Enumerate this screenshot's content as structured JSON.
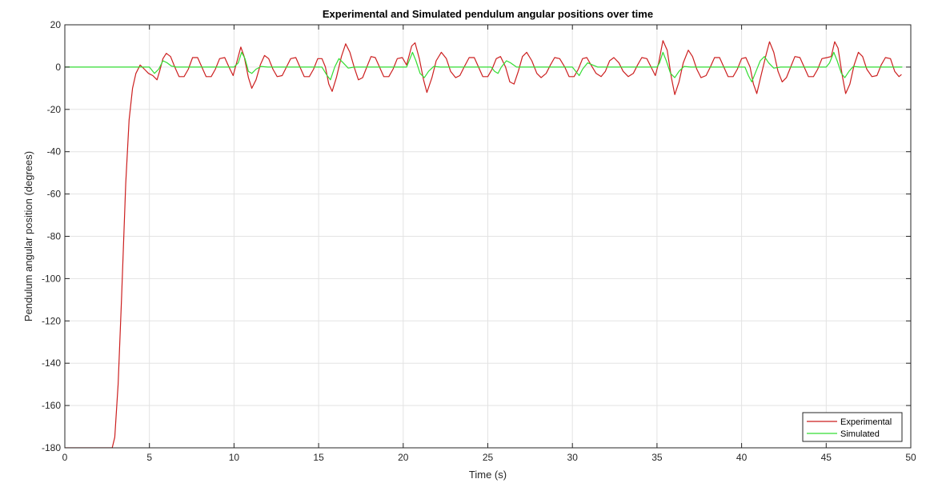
{
  "chart_data": {
    "type": "line",
    "title": "Experimental and Simulated pendulum angular positions over time",
    "xlabel": "Time (s)",
    "ylabel": "Pendulum angular position (degrees)",
    "xlim": [
      0,
      50
    ],
    "ylim": [
      -180,
      20
    ],
    "xticks": [
      0,
      5,
      10,
      15,
      20,
      25,
      30,
      35,
      40,
      45,
      50
    ],
    "yticks": [
      20,
      0,
      -20,
      -40,
      -60,
      -80,
      -100,
      -120,
      -140,
      -160,
      -180
    ],
    "grid": true,
    "legend_position": "bottom-right",
    "series": [
      {
        "name": "Experimental",
        "color": "#cc1f1f",
        "points": [
          [
            0,
            -180
          ],
          [
            2.8,
            -180
          ],
          [
            2.95,
            -175
          ],
          [
            3.15,
            -150
          ],
          [
            3.35,
            -110
          ],
          [
            3.6,
            -55
          ],
          [
            3.8,
            -25
          ],
          [
            4.0,
            -10
          ],
          [
            4.2,
            -3
          ],
          [
            4.45,
            1
          ],
          [
            4.7,
            -1
          ],
          [
            4.95,
            -3
          ],
          [
            5.2,
            -4
          ],
          [
            5.45,
            -6
          ],
          [
            5.6,
            -2
          ],
          [
            5.8,
            4
          ],
          [
            6.0,
            6.5
          ],
          [
            6.25,
            5
          ],
          [
            6.5,
            0
          ],
          [
            6.75,
            -4.5
          ],
          [
            7.05,
            -4.5
          ],
          [
            7.3,
            -1
          ],
          [
            7.55,
            4.5
          ],
          [
            7.85,
            4.5
          ],
          [
            8.1,
            0
          ],
          [
            8.35,
            -4.5
          ],
          [
            8.65,
            -4.5
          ],
          [
            8.9,
            -1
          ],
          [
            9.15,
            4
          ],
          [
            9.45,
            4.5
          ],
          [
            9.7,
            0
          ],
          [
            9.95,
            -4
          ],
          [
            10.15,
            2
          ],
          [
            10.4,
            9.5
          ],
          [
            10.6,
            5
          ],
          [
            10.85,
            -5
          ],
          [
            11.05,
            -10
          ],
          [
            11.3,
            -6
          ],
          [
            11.55,
            1
          ],
          [
            11.8,
            5.5
          ],
          [
            12.05,
            4
          ],
          [
            12.3,
            -1
          ],
          [
            12.55,
            -4.5
          ],
          [
            12.85,
            -4
          ],
          [
            13.1,
            0
          ],
          [
            13.35,
            4
          ],
          [
            13.65,
            4.5
          ],
          [
            13.9,
            0
          ],
          [
            14.15,
            -4.5
          ],
          [
            14.45,
            -4.5
          ],
          [
            14.7,
            -1
          ],
          [
            14.95,
            4
          ],
          [
            15.2,
            4
          ],
          [
            15.4,
            0
          ],
          [
            15.6,
            -8
          ],
          [
            15.8,
            -11.5
          ],
          [
            16.05,
            -5
          ],
          [
            16.35,
            5
          ],
          [
            16.6,
            11
          ],
          [
            16.85,
            7
          ],
          [
            17.1,
            0
          ],
          [
            17.35,
            -6
          ],
          [
            17.6,
            -5
          ],
          [
            17.85,
            0
          ],
          [
            18.1,
            5
          ],
          [
            18.35,
            4.5
          ],
          [
            18.6,
            0
          ],
          [
            18.85,
            -4.5
          ],
          [
            19.15,
            -4.5
          ],
          [
            19.4,
            -1
          ],
          [
            19.65,
            4
          ],
          [
            19.95,
            4.5
          ],
          [
            20.2,
            1
          ],
          [
            20.5,
            10
          ],
          [
            20.7,
            11.5
          ],
          [
            20.95,
            4
          ],
          [
            21.2,
            -6
          ],
          [
            21.4,
            -12
          ],
          [
            21.7,
            -5
          ],
          [
            21.95,
            3
          ],
          [
            22.25,
            7
          ],
          [
            22.55,
            4
          ],
          [
            22.8,
            -2
          ],
          [
            23.1,
            -5
          ],
          [
            23.35,
            -4
          ],
          [
            23.6,
            0
          ],
          [
            23.9,
            4.5
          ],
          [
            24.2,
            4.5
          ],
          [
            24.45,
            0
          ],
          [
            24.7,
            -4.5
          ],
          [
            25.0,
            -4.5
          ],
          [
            25.25,
            -1
          ],
          [
            25.5,
            4
          ],
          [
            25.75,
            5
          ],
          [
            26.05,
            0
          ],
          [
            26.3,
            -7
          ],
          [
            26.55,
            -8
          ],
          [
            26.8,
            -2
          ],
          [
            27.05,
            5
          ],
          [
            27.3,
            7
          ],
          [
            27.6,
            3
          ],
          [
            27.9,
            -3
          ],
          [
            28.15,
            -5
          ],
          [
            28.45,
            -3
          ],
          [
            28.7,
            1
          ],
          [
            28.95,
            4.5
          ],
          [
            29.25,
            4
          ],
          [
            29.55,
            0
          ],
          [
            29.8,
            -4.5
          ],
          [
            30.1,
            -4.5
          ],
          [
            30.35,
            -1
          ],
          [
            30.6,
            4
          ],
          [
            30.85,
            4.5
          ],
          [
            31.1,
            1
          ],
          [
            31.4,
            -3
          ],
          [
            31.7,
            -4.5
          ],
          [
            31.95,
            -2
          ],
          [
            32.2,
            3
          ],
          [
            32.45,
            4.5
          ],
          [
            32.75,
            2
          ],
          [
            33.0,
            -2
          ],
          [
            33.3,
            -4.5
          ],
          [
            33.6,
            -3
          ],
          [
            33.85,
            1
          ],
          [
            34.1,
            4.5
          ],
          [
            34.4,
            4
          ],
          [
            34.65,
            0
          ],
          [
            34.9,
            -4
          ],
          [
            35.1,
            2
          ],
          [
            35.35,
            12.5
          ],
          [
            35.6,
            8
          ],
          [
            35.85,
            -5
          ],
          [
            36.05,
            -13
          ],
          [
            36.3,
            -7
          ],
          [
            36.55,
            2
          ],
          [
            36.85,
            8
          ],
          [
            37.1,
            5
          ],
          [
            37.35,
            -1
          ],
          [
            37.6,
            -5
          ],
          [
            37.9,
            -4
          ],
          [
            38.15,
            0
          ],
          [
            38.4,
            4.5
          ],
          [
            38.7,
            4.5
          ],
          [
            38.95,
            0
          ],
          [
            39.2,
            -4.5
          ],
          [
            39.5,
            -4.5
          ],
          [
            39.75,
            -1
          ],
          [
            40.0,
            4
          ],
          [
            40.25,
            4.5
          ],
          [
            40.5,
            0
          ],
          [
            40.7,
            -8
          ],
          [
            40.9,
            -12.5
          ],
          [
            41.15,
            -4
          ],
          [
            41.45,
            6
          ],
          [
            41.65,
            12
          ],
          [
            41.9,
            7
          ],
          [
            42.15,
            -2
          ],
          [
            42.4,
            -7
          ],
          [
            42.65,
            -5
          ],
          [
            42.9,
            0
          ],
          [
            43.15,
            5
          ],
          [
            43.45,
            4.5
          ],
          [
            43.7,
            0
          ],
          [
            43.95,
            -4.5
          ],
          [
            44.25,
            -4.5
          ],
          [
            44.5,
            -1
          ],
          [
            44.75,
            4
          ],
          [
            45.05,
            4.5
          ],
          [
            45.3,
            5
          ],
          [
            45.5,
            12
          ],
          [
            45.7,
            9
          ],
          [
            45.95,
            -4
          ],
          [
            46.15,
            -12.5
          ],
          [
            46.4,
            -8
          ],
          [
            46.65,
            1
          ],
          [
            46.9,
            7
          ],
          [
            47.15,
            5
          ],
          [
            47.4,
            -1
          ],
          [
            47.7,
            -4.5
          ],
          [
            48.0,
            -4
          ],
          [
            48.25,
            1
          ],
          [
            48.5,
            4.5
          ],
          [
            48.8,
            4
          ],
          [
            49.05,
            -2
          ],
          [
            49.3,
            -4.5
          ],
          [
            49.45,
            -3.5
          ]
        ]
      },
      {
        "name": "Simulated",
        "color": "#33dd33",
        "points": [
          [
            0,
            0
          ],
          [
            4.8,
            0
          ],
          [
            5.0,
            0
          ],
          [
            5.3,
            -3
          ],
          [
            5.55,
            -1
          ],
          [
            5.8,
            3
          ],
          [
            6.05,
            2
          ],
          [
            6.3,
            0.5
          ],
          [
            6.6,
            0
          ],
          [
            10.0,
            0
          ],
          [
            10.25,
            2
          ],
          [
            10.45,
            7
          ],
          [
            10.65,
            4
          ],
          [
            10.85,
            -2
          ],
          [
            11.05,
            -3
          ],
          [
            11.3,
            -1
          ],
          [
            11.6,
            0.3
          ],
          [
            12.0,
            0
          ],
          [
            15.2,
            0
          ],
          [
            15.5,
            -4
          ],
          [
            15.7,
            -6
          ],
          [
            15.95,
            0
          ],
          [
            16.2,
            4
          ],
          [
            16.45,
            2
          ],
          [
            16.75,
            -0.5
          ],
          [
            17.1,
            0
          ],
          [
            20.2,
            0
          ],
          [
            20.4,
            4
          ],
          [
            20.55,
            7
          ],
          [
            20.75,
            3
          ],
          [
            21.0,
            -3
          ],
          [
            21.25,
            -5
          ],
          [
            21.5,
            -2
          ],
          [
            21.8,
            0.3
          ],
          [
            22.2,
            0
          ],
          [
            25.2,
            0
          ],
          [
            25.4,
            -2
          ],
          [
            25.6,
            -3
          ],
          [
            25.8,
            0
          ],
          [
            26.1,
            3
          ],
          [
            26.35,
            2
          ],
          [
            26.7,
            0
          ],
          [
            30.0,
            0
          ],
          [
            30.2,
            -2
          ],
          [
            30.4,
            -4
          ],
          [
            30.6,
            -1
          ],
          [
            30.9,
            2
          ],
          [
            31.2,
            1
          ],
          [
            31.5,
            0
          ],
          [
            35.0,
            0
          ],
          [
            35.15,
            2
          ],
          [
            35.35,
            7
          ],
          [
            35.55,
            3
          ],
          [
            35.8,
            -3
          ],
          [
            36.05,
            -5
          ],
          [
            36.3,
            -2
          ],
          [
            36.6,
            0.3
          ],
          [
            37.0,
            0
          ],
          [
            40.2,
            0
          ],
          [
            40.4,
            -4
          ],
          [
            40.6,
            -7
          ],
          [
            40.85,
            -2
          ],
          [
            41.1,
            3
          ],
          [
            41.35,
            5
          ],
          [
            41.6,
            2
          ],
          [
            41.9,
            -0.5
          ],
          [
            42.3,
            0
          ],
          [
            45.0,
            0
          ],
          [
            45.2,
            2
          ],
          [
            45.45,
            7
          ],
          [
            45.65,
            3
          ],
          [
            45.9,
            -3
          ],
          [
            46.1,
            -5
          ],
          [
            46.35,
            -2
          ],
          [
            46.6,
            0.3
          ],
          [
            47.0,
            0
          ],
          [
            49.5,
            0
          ]
        ]
      }
    ]
  }
}
